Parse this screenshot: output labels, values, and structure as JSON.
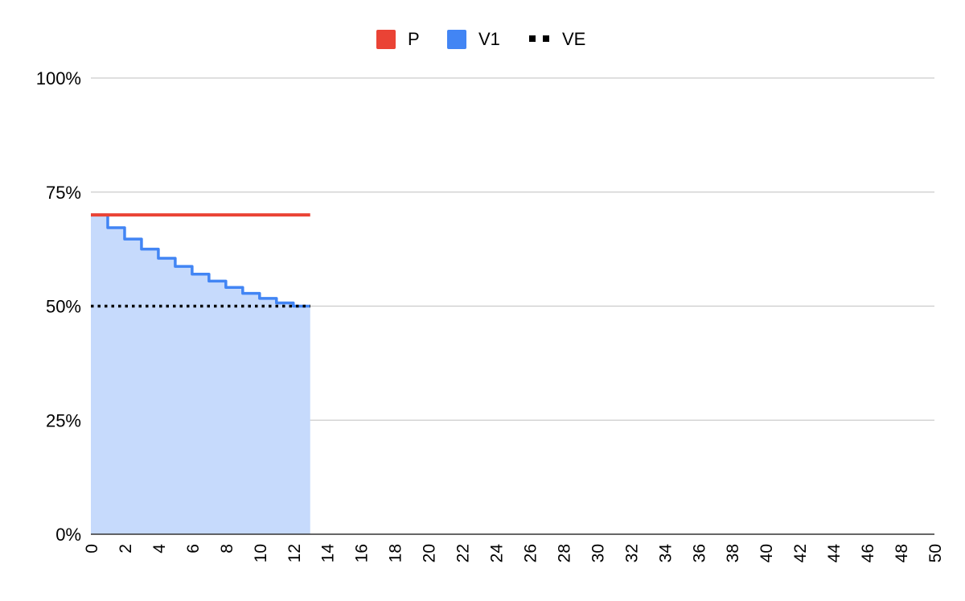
{
  "chart_data": {
    "type": "area",
    "title": "",
    "xlabel": "",
    "ylabel": "",
    "xlim": [
      0,
      50
    ],
    "ylim": [
      0,
      1
    ],
    "x_ticks": [
      "0",
      "2",
      "4",
      "6",
      "8",
      "10",
      "12",
      "14",
      "16",
      "18",
      "20",
      "22",
      "24",
      "26",
      "28",
      "30",
      "32",
      "34",
      "36",
      "38",
      "40",
      "42",
      "44",
      "46",
      "48",
      "50"
    ],
    "y_ticks": [
      "0%",
      "25%",
      "50%",
      "75%",
      "100%"
    ],
    "grid": true,
    "legend_position": "top",
    "series": [
      {
        "name": "P",
        "type": "line",
        "color": "#EA4335",
        "style": "solid",
        "x": [
          0,
          13
        ],
        "y": [
          0.7,
          0.7
        ]
      },
      {
        "name": "V1",
        "type": "step-area",
        "color": "#4285F4",
        "fill_color": "#C6DAFC",
        "style": "solid",
        "x": [
          0,
          1,
          2,
          3,
          4,
          5,
          6,
          7,
          8,
          9,
          10,
          11,
          12,
          13
        ],
        "y": [
          0.7,
          0.672,
          0.647,
          0.625,
          0.605,
          0.587,
          0.57,
          0.555,
          0.541,
          0.528,
          0.517,
          0.507,
          0.5,
          0.5
        ]
      },
      {
        "name": "VE",
        "type": "line",
        "color": "#000000",
        "style": "dotted",
        "x": [
          0,
          13
        ],
        "y": [
          0.5,
          0.5
        ]
      }
    ]
  }
}
